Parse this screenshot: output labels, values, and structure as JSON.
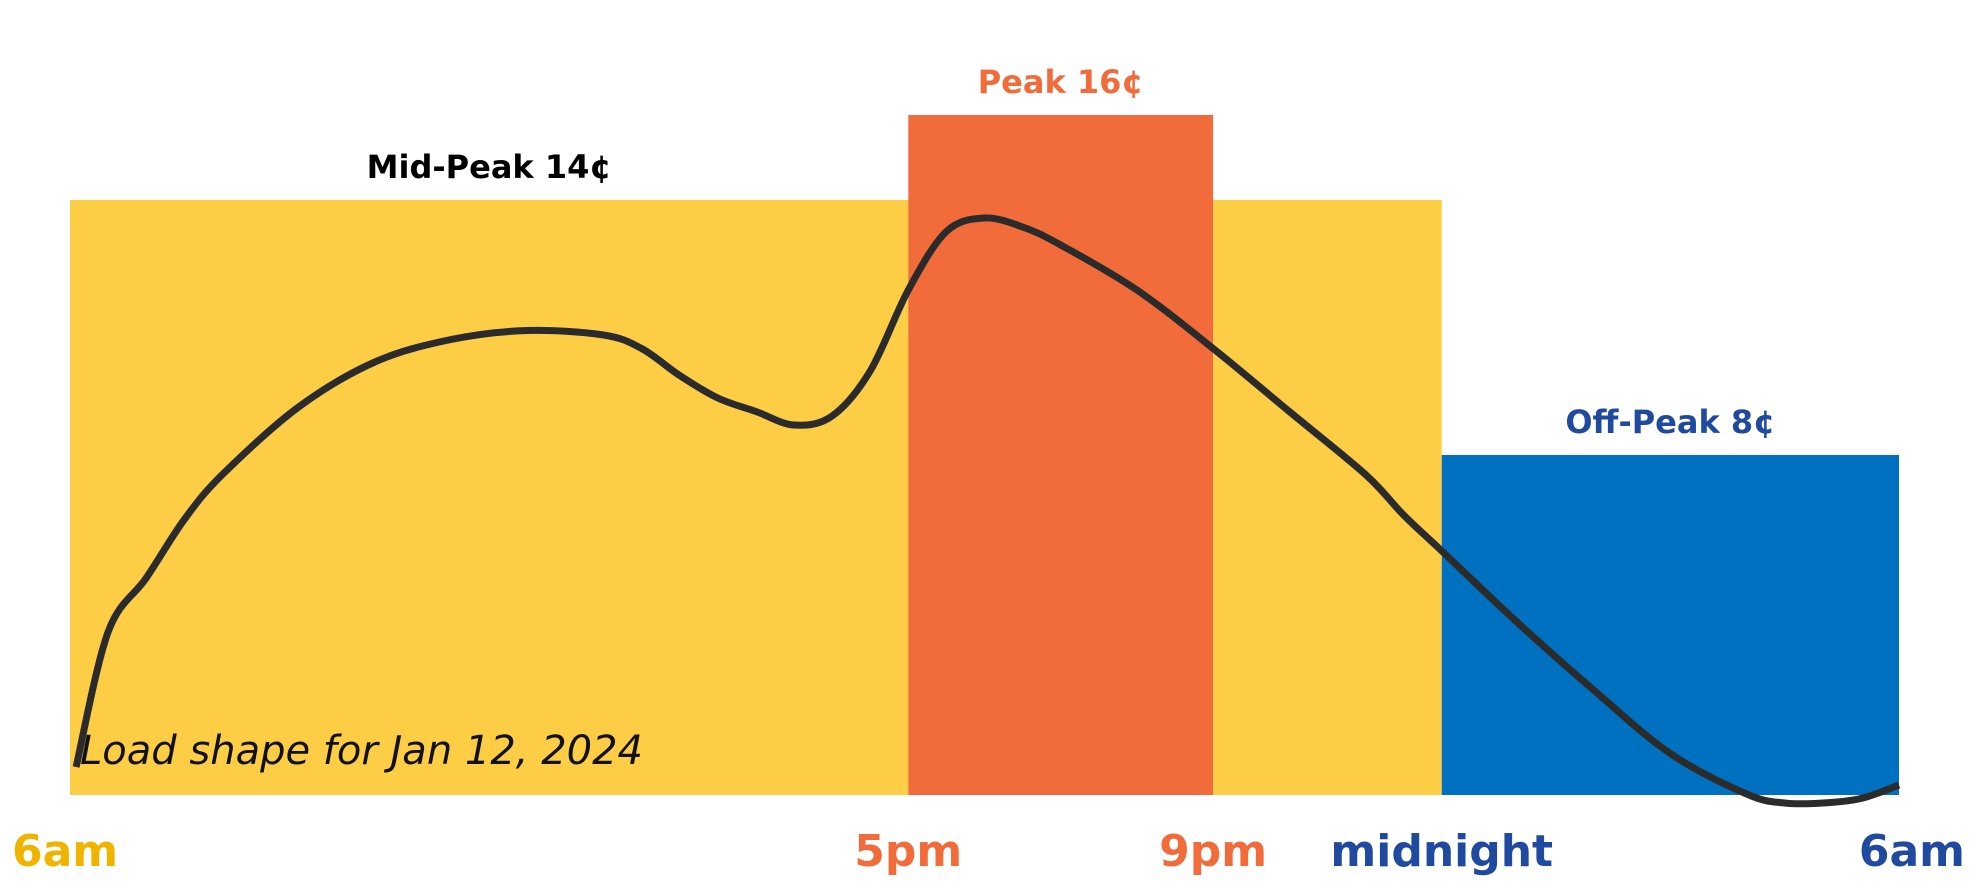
{
  "chart_data": {
    "type": "area",
    "title": "",
    "xlabel": "",
    "ylabel": "",
    "x_unit": "hours after 6am",
    "xlim": [
      0,
      24
    ],
    "tick_labels": [
      {
        "x": 0,
        "label": "6am",
        "color": "#f0b400"
      },
      {
        "x": 11,
        "label": "5pm",
        "color": "#f26c3b"
      },
      {
        "x": 15,
        "label": "9pm",
        "color": "#f26c3b"
      },
      {
        "x": 18,
        "label": "midnight",
        "color": "#1f4aa0"
      },
      {
        "x": 24,
        "label": "6am",
        "color": "#1f4aa0"
      }
    ],
    "price_unit": "¢",
    "price_ylim": [
      0,
      18
    ],
    "price_periods": [
      {
        "name": "Mid-Peak",
        "label": "Mid-Peak 14¢",
        "price": 14,
        "x0": 0,
        "x1": 11,
        "color": "#fdcd45",
        "label_color": "#000000"
      },
      {
        "name": "Peak",
        "label": "Peak 16¢",
        "price": 16,
        "x0": 11,
        "x1": 15,
        "color": "#f26c3b",
        "label_color": "#f26c3b"
      },
      {
        "name": "Mid-Peak",
        "label": "",
        "price": 14,
        "x0": 15,
        "x1": 18,
        "color": "#fdcd45",
        "label_color": "#000000"
      },
      {
        "name": "Off-Peak",
        "label": "Off-Peak 8¢",
        "price": 8,
        "x0": 18,
        "x1": 24,
        "color": "#0070c0",
        "label_color": "#1f4aa0"
      }
    ],
    "series": [
      {
        "caption": "Load shape for Jan 12, 2024",
        "color": "#2b2b2b",
        "x": [
          0.08,
          0.5,
          1,
          1.5,
          2,
          3,
          4,
          5,
          6,
          7,
          7.5,
          8,
          8.5,
          9,
          9.5,
          10,
          10.5,
          11,
          11.5,
          12,
          12.5,
          13,
          14,
          15,
          16,
          17,
          17.5,
          18,
          19,
          20,
          21,
          22,
          22.5,
          23,
          23.5,
          24
        ],
        "y": [
          1.0,
          4.0,
          5.2,
          6.5,
          7.5,
          9.0,
          10.0,
          10.5,
          10.7,
          10.6,
          10.3,
          9.7,
          9.2,
          8.9,
          8.6,
          8.8,
          9.8,
          11.6,
          12.9,
          13.2,
          13.0,
          12.6,
          11.6,
          10.3,
          8.9,
          7.5,
          6.6,
          5.8,
          4.2,
          2.7,
          1.3,
          0.4,
          0.2,
          0.2,
          0.3,
          0.6
        ]
      }
    ],
    "grid": false,
    "legend": "none"
  }
}
